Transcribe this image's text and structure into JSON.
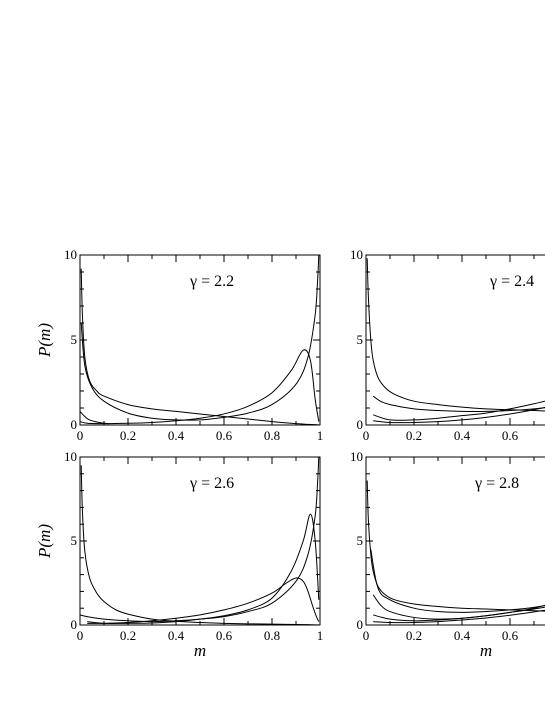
{
  "chart_data": [
    {
      "type": "line",
      "annotation": "γ = 2.2",
      "ylabel": "P(m)",
      "xlabel": "",
      "xlim": [
        0,
        1
      ],
      "ylim": [
        0,
        10
      ],
      "xticks": [
        "0",
        "0.2",
        "0.4",
        "0.6",
        "0.8",
        "1"
      ],
      "yticks": [
        "0",
        "5",
        "10"
      ],
      "series": [
        {
          "x": [
            0.005,
            0.01,
            0.02,
            0.04,
            0.07,
            0.1,
            0.2,
            0.3,
            0.4,
            0.5,
            0.6,
            0.7,
            0.8,
            0.9,
            0.95,
            0.98,
            0.995
          ],
          "y": [
            9.2,
            6.5,
            4.0,
            2.6,
            2.0,
            1.7,
            1.2,
            0.95,
            0.8,
            0.65,
            0.5,
            0.35,
            0.2,
            0.08,
            0.04,
            0.02,
            0.01
          ]
        },
        {
          "x": [
            0.005,
            0.02,
            0.05,
            0.1,
            0.2,
            0.3,
            0.4,
            0.5,
            0.6,
            0.7,
            0.8,
            0.9,
            0.95,
            0.98,
            0.99,
            0.995
          ],
          "y": [
            6.0,
            3.5,
            2.2,
            1.4,
            0.7,
            0.4,
            0.3,
            0.3,
            0.45,
            0.7,
            1.2,
            2.4,
            4.0,
            6.5,
            8.5,
            10.0
          ]
        },
        {
          "x": [
            0.0,
            0.03,
            0.1,
            0.2,
            0.3,
            0.4,
            0.5,
            0.6,
            0.7,
            0.8,
            0.88,
            0.93,
            0.96,
            0.98,
            0.995
          ],
          "y": [
            0.2,
            0.1,
            0.08,
            0.1,
            0.15,
            0.25,
            0.4,
            0.65,
            1.1,
            1.9,
            3.2,
            4.4,
            3.8,
            1.5,
            0.2
          ]
        },
        {
          "x": [
            0.0,
            0.02,
            0.04,
            0.08,
            0.12
          ],
          "y": [
            0.8,
            0.5,
            0.3,
            0.15,
            0.08
          ]
        }
      ]
    },
    {
      "type": "line",
      "annotation": "γ = 2.4",
      "ylabel": "",
      "xlabel": "",
      "xlim": [
        0,
        1
      ],
      "ylim": [
        0,
        10
      ],
      "xticks": [
        "0",
        "0.2",
        "0.4",
        "0.6"
      ],
      "yticks": [
        "0",
        "5",
        "10"
      ],
      "series": [
        {
          "x": [
            0.005,
            0.01,
            0.02,
            0.03,
            0.05,
            0.08,
            0.12,
            0.2,
            0.3,
            0.4,
            0.5,
            0.6,
            0.7,
            0.8
          ],
          "y": [
            9.8,
            7.5,
            5.0,
            3.8,
            2.8,
            2.2,
            1.8,
            1.4,
            1.2,
            1.05,
            0.95,
            0.9,
            0.85,
            0.8
          ]
        },
        {
          "x": [
            0.03,
            0.06,
            0.1,
            0.2,
            0.3,
            0.4,
            0.5,
            0.6,
            0.7,
            0.8
          ],
          "y": [
            1.7,
            1.4,
            1.2,
            0.95,
            0.85,
            0.8,
            0.8,
            0.85,
            0.95,
            1.1
          ]
        },
        {
          "x": [
            0.03,
            0.1,
            0.2,
            0.3,
            0.4,
            0.5,
            0.6,
            0.7,
            0.8
          ],
          "y": [
            0.6,
            0.3,
            0.3,
            0.4,
            0.55,
            0.7,
            0.95,
            1.25,
            1.6
          ]
        },
        {
          "x": [
            0.03,
            0.1,
            0.2,
            0.3,
            0.4,
            0.5,
            0.6,
            0.7,
            0.8
          ],
          "y": [
            0.25,
            0.15,
            0.15,
            0.2,
            0.3,
            0.45,
            0.65,
            0.9,
            1.2
          ]
        }
      ]
    },
    {
      "type": "line",
      "annotation": "γ = 2.6",
      "ylabel": "P(m)",
      "xlabel": "m",
      "xlim": [
        0,
        1
      ],
      "ylim": [
        0,
        10
      ],
      "xticks": [
        "0",
        "0.2",
        "0.4",
        "0.6",
        "0.8",
        "1"
      ],
      "yticks": [
        "0",
        "5",
        "10"
      ],
      "series": [
        {
          "x": [
            0.005,
            0.01,
            0.02,
            0.04,
            0.07,
            0.1,
            0.15,
            0.2,
            0.3,
            0.4,
            0.5,
            0.6,
            0.7,
            0.8,
            0.9,
            0.95,
            0.98,
            0.995
          ],
          "y": [
            9.5,
            6.8,
            4.4,
            2.8,
            1.9,
            1.4,
            0.9,
            0.65,
            0.35,
            0.22,
            0.15,
            0.1,
            0.07,
            0.05,
            0.03,
            0.02,
            0.01,
            0.01
          ]
        },
        {
          "x": [
            0.0,
            0.03,
            0.1,
            0.2,
            0.3,
            0.4,
            0.5,
            0.6,
            0.7,
            0.8,
            0.9,
            0.95,
            0.98,
            0.99,
            0.995
          ],
          "y": [
            0.6,
            0.5,
            0.35,
            0.25,
            0.2,
            0.25,
            0.35,
            0.5,
            0.8,
            1.3,
            2.6,
            4.2,
            6.5,
            8.5,
            10.0
          ]
        },
        {
          "x": [
            0.03,
            0.1,
            0.2,
            0.3,
            0.4,
            0.5,
            0.6,
            0.7,
            0.8,
            0.88,
            0.93,
            0.96,
            0.98,
            0.995
          ],
          "y": [
            0.2,
            0.1,
            0.1,
            0.12,
            0.2,
            0.35,
            0.55,
            0.9,
            1.6,
            3.2,
            5.0,
            6.6,
            5.0,
            1.5
          ]
        },
        {
          "x": [
            0.03,
            0.1,
            0.2,
            0.3,
            0.4,
            0.5,
            0.6,
            0.7,
            0.8,
            0.86,
            0.9,
            0.93,
            0.95,
            0.97,
            0.985,
            0.995
          ],
          "y": [
            0.1,
            0.1,
            0.15,
            0.25,
            0.4,
            0.6,
            0.9,
            1.3,
            1.9,
            2.5,
            2.8,
            2.6,
            2.0,
            1.1,
            0.5,
            0.2
          ]
        }
      ]
    },
    {
      "type": "line",
      "annotation": "γ = 2.8",
      "ylabel": "",
      "xlabel": "m",
      "xlim": [
        0,
        1
      ],
      "ylim": [
        0,
        10
      ],
      "xticks": [
        "0",
        "0.2",
        "0.4",
        "0.6"
      ],
      "yticks": [
        "0",
        "5",
        "10"
      ],
      "series": [
        {
          "x": [
            0.005,
            0.01,
            0.02,
            0.03,
            0.05,
            0.08,
            0.12,
            0.2,
            0.3,
            0.4,
            0.5,
            0.6,
            0.7,
            0.8
          ],
          "y": [
            8.6,
            6.2,
            4.2,
            3.2,
            2.3,
            1.8,
            1.5,
            1.25,
            1.1,
            1.0,
            0.95,
            0.9,
            0.85,
            0.8
          ]
        },
        {
          "x": [
            0.02,
            0.05,
            0.1,
            0.2,
            0.3,
            0.4,
            0.5,
            0.6,
            0.7,
            0.8
          ],
          "y": [
            4.5,
            2.2,
            1.5,
            1.0,
            0.8,
            0.75,
            0.8,
            0.9,
            1.05,
            1.3
          ]
        },
        {
          "x": [
            0.03,
            0.06,
            0.1,
            0.2,
            0.3,
            0.4,
            0.5,
            0.6,
            0.7,
            0.8
          ],
          "y": [
            1.8,
            1.2,
            0.8,
            0.45,
            0.35,
            0.4,
            0.55,
            0.75,
            1.0,
            1.4
          ]
        },
        {
          "x": [
            0.03,
            0.1,
            0.2,
            0.3,
            0.4,
            0.5,
            0.6,
            0.7,
            0.8
          ],
          "y": [
            0.6,
            0.35,
            0.25,
            0.3,
            0.4,
            0.55,
            0.75,
            0.95,
            1.2
          ]
        },
        {
          "x": [
            0.03,
            0.1,
            0.2,
            0.3,
            0.4,
            0.5,
            0.6,
            0.7,
            0.8
          ],
          "y": [
            0.2,
            0.15,
            0.15,
            0.2,
            0.3,
            0.42,
            0.58,
            0.78,
            1.0
          ]
        }
      ]
    }
  ]
}
